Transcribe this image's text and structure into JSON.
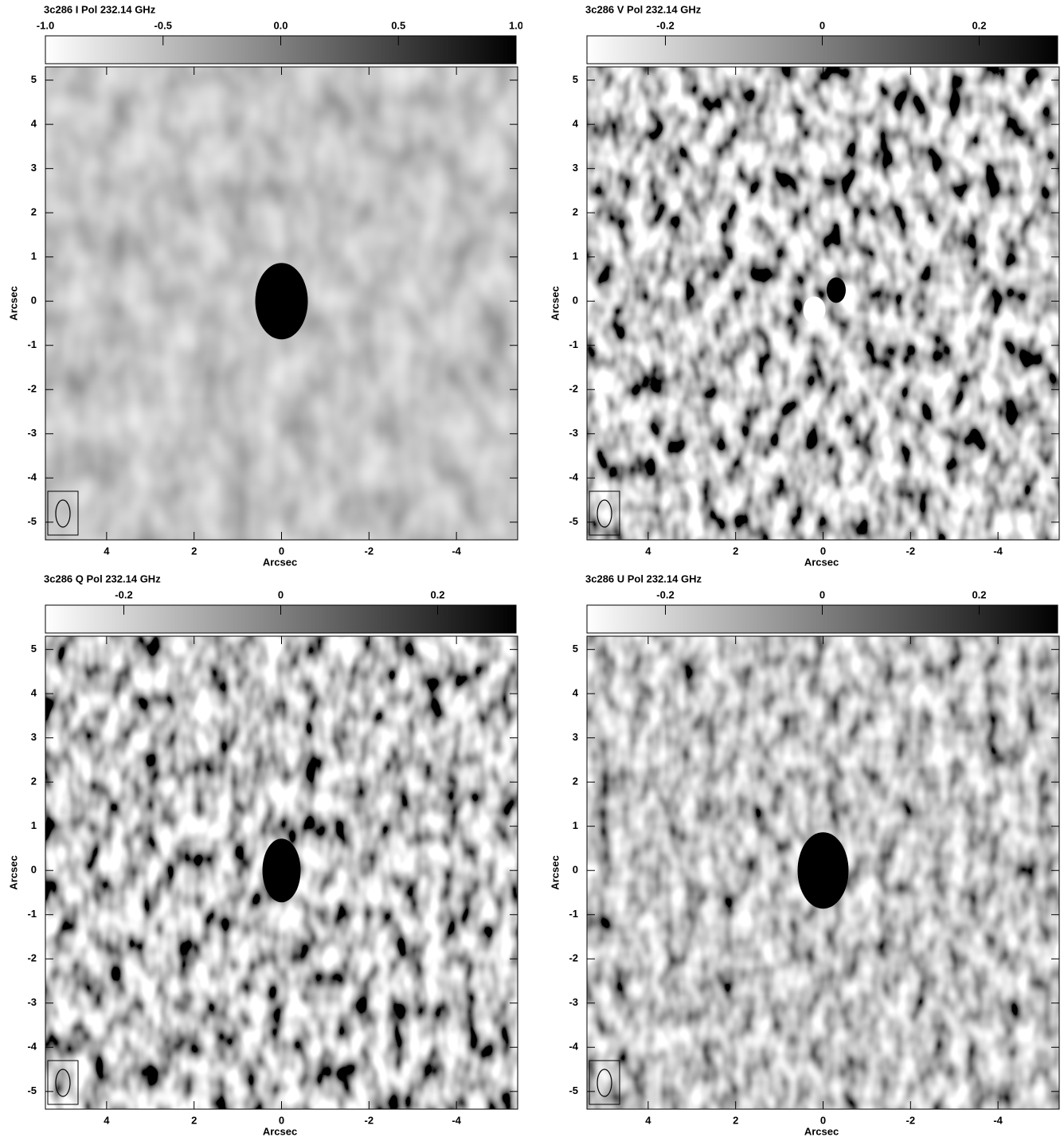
{
  "chart_data": [
    {
      "type": "image",
      "title": "3c286  I Pol  232.14 GHz",
      "xlabel": "Arcsec",
      "ylabel": "Arcsec",
      "xlim": [
        5.4,
        -5.4
      ],
      "ylim": [
        -5.4,
        5.3
      ],
      "xticks": [
        4,
        2,
        0,
        -2,
        -4
      ],
      "yticks": [
        5,
        4,
        3,
        2,
        1,
        0,
        -1,
        -2,
        -3,
        -4,
        -5
      ],
      "colorbar": {
        "lim": [
          -1.0,
          1.0
        ],
        "ticks": [
          {
            "value": -1.0,
            "label": "-1.0"
          },
          -0.5,
          {
            "value": 0.0,
            "label": "0.0"
          },
          0.5,
          {
            "value": 1.0,
            "label": "1.0"
          }
        ]
      }
    },
    {
      "type": "image",
      "title": "3c286  V Pol  232.14 GHz",
      "xlabel": "Arcsec",
      "ylabel": "Arcsec",
      "xlim": [
        5.4,
        -5.4
      ],
      "ylim": [
        -5.4,
        5.3
      ],
      "xticks": [
        4,
        2,
        0,
        -2,
        -4
      ],
      "yticks": [
        5,
        4,
        3,
        2,
        1,
        0,
        -1,
        -2,
        -3,
        -4,
        -5
      ],
      "colorbar": {
        "lim": [
          -0.3,
          0.3
        ],
        "ticks": [
          -0.2,
          0,
          0.2
        ]
      }
    },
    {
      "type": "image",
      "title": "3c286  Q Pol  232.14 GHz",
      "xlabel": "Arcsec",
      "ylabel": "Arcsec",
      "xlim": [
        5.4,
        -5.4
      ],
      "ylim": [
        -5.4,
        5.3
      ],
      "xticks": [
        4,
        2,
        0,
        -2,
        -4
      ],
      "yticks": [
        5,
        4,
        3,
        2,
        1,
        0,
        -1,
        -2,
        -3,
        -4,
        -5
      ],
      "colorbar": {
        "lim": [
          -0.3,
          0.3
        ],
        "ticks": [
          -0.2,
          0,
          0.2
        ]
      }
    },
    {
      "type": "image",
      "title": "3c286  U Pol  232.14 GHz",
      "xlabel": "Arcsec",
      "ylabel": "Arcsec",
      "xlim": [
        5.4,
        -5.4
      ],
      "ylim": [
        -5.4,
        5.3
      ],
      "xticks": [
        4,
        2,
        0,
        -2,
        -4
      ],
      "yticks": [
        5,
        4,
        3,
        2,
        1,
        0,
        -1,
        -2,
        -3,
        -4,
        -5
      ],
      "colorbar": {
        "lim": [
          -0.3,
          0.3
        ],
        "ticks": [
          -0.2,
          0,
          0.2
        ]
      }
    }
  ]
}
